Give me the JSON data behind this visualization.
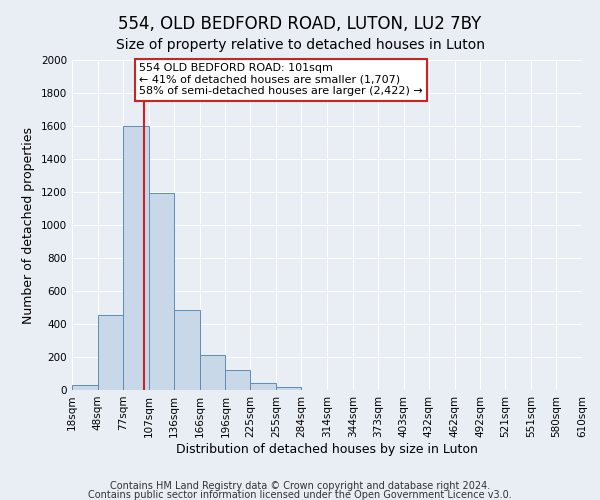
{
  "title": "554, OLD BEDFORD ROAD, LUTON, LU2 7BY",
  "subtitle": "Size of property relative to detached houses in Luton",
  "xlabel": "Distribution of detached houses by size in Luton",
  "ylabel": "Number of detached properties",
  "bin_labels": [
    "18sqm",
    "48sqm",
    "77sqm",
    "107sqm",
    "136sqm",
    "166sqm",
    "196sqm",
    "225sqm",
    "255sqm",
    "284sqm",
    "314sqm",
    "344sqm",
    "373sqm",
    "403sqm",
    "432sqm",
    "462sqm",
    "492sqm",
    "521sqm",
    "551sqm",
    "580sqm",
    "610sqm"
  ],
  "bin_edges": [
    18,
    48,
    77,
    107,
    136,
    166,
    196,
    225,
    255,
    284,
    314,
    344,
    373,
    403,
    432,
    462,
    492,
    521,
    551,
    580,
    610
  ],
  "bar_heights": [
    30,
    455,
    1600,
    1195,
    485,
    210,
    120,
    45,
    20,
    0,
    0,
    0,
    0,
    0,
    0,
    0,
    0,
    0,
    0,
    0
  ],
  "bar_color": "#c8d8e8",
  "bar_edge_color": "#5b8db8",
  "property_value": 101,
  "property_line_color": "#cc2222",
  "annotation_line1": "554 OLD BEDFORD ROAD: 101sqm",
  "annotation_line2": "← 41% of detached houses are smaller (1,707)",
  "annotation_line3": "58% of semi-detached houses are larger (2,422) →",
  "annotation_box_color": "#ffffff",
  "annotation_box_edge_color": "#cc2222",
  "ylim": [
    0,
    2000
  ],
  "yticks": [
    0,
    200,
    400,
    600,
    800,
    1000,
    1200,
    1400,
    1600,
    1800,
    2000
  ],
  "footer1": "Contains HM Land Registry data © Crown copyright and database right 2024.",
  "footer2": "Contains public sector information licensed under the Open Government Licence v3.0.",
  "background_color": "#e8eef4",
  "grid_color": "#ffffff",
  "title_fontsize": 12,
  "subtitle_fontsize": 10,
  "axis_label_fontsize": 9,
  "tick_fontsize": 7.5,
  "annotation_fontsize": 8,
  "footer_fontsize": 7
}
